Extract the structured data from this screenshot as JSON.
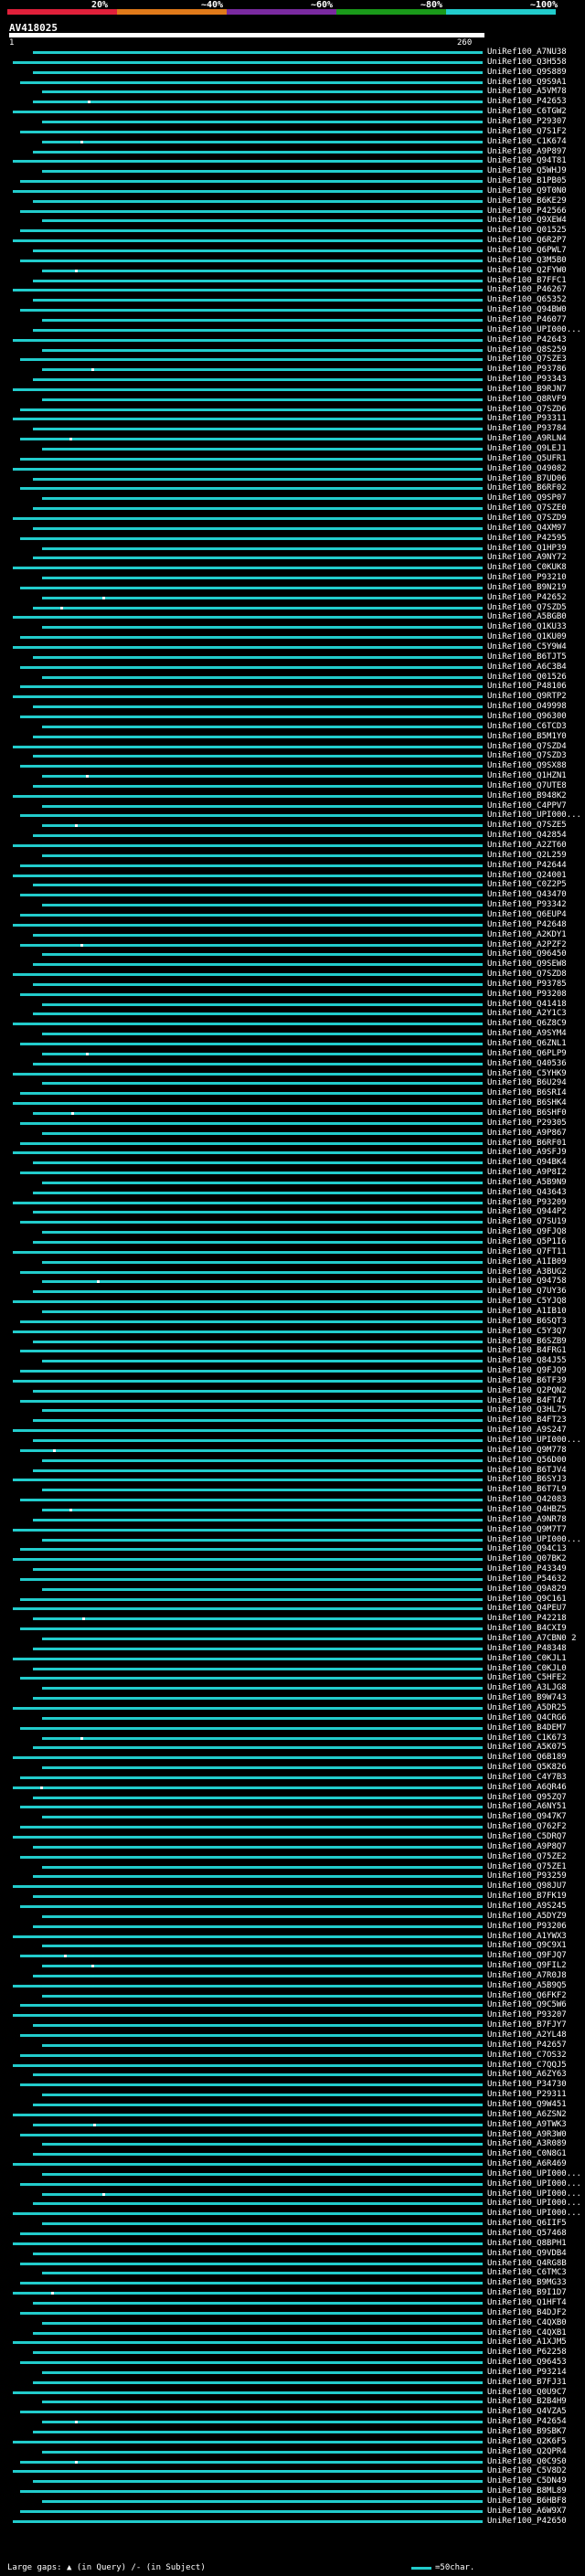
{
  "scale": {
    "labels": [
      "20%",
      "~40%",
      "~60%",
      "~80%",
      "~100%"
    ],
    "colors": [
      "#e0203a",
      "#e07a1a",
      "#7a2aa0",
      "#1a9a1a",
      "#22cccc"
    ]
  },
  "query": {
    "name": "AV418025",
    "start": "1",
    "end": "260"
  },
  "hit_color": "#22cccc",
  "hits": [
    "UniRef100_A7NU38",
    "UniRef100_Q3H558",
    "UniRef100_Q9S889",
    "UniRef100_Q9S9A1",
    "UniRef100_A5VM78",
    "UniRef100_P42653",
    "UniRef100_C6TGW2",
    "UniRef100_P29307",
    "UniRef100_Q7S1F2",
    "UniRef100_C1K674",
    "UniRef100_A9P897",
    "UniRef100_Q94T81",
    "UniRef100_Q5WHJ9",
    "UniRef100_B1PB05",
    "UniRef100_Q9T0N0",
    "UniRef100_B6KE29",
    "UniRef100_P42566",
    "UniRef100_Q9XEW4",
    "UniRef100_Q01525",
    "UniRef100_Q6R2P7",
    "UniRef100_Q6PWL7",
    "UniRef100_Q3M5B0",
    "UniRef100_Q2FYW0",
    "UniRef100_B7FFC1",
    "UniRef100_P46267",
    "UniRef100_Q65352",
    "UniRef100_Q94BW0",
    "UniRef100_P46077",
    "UniRef100_UPI000...",
    "UniRef100_P42643",
    "UniRef100_Q8S259",
    "UniRef100_Q7SZE3",
    "UniRef100_P93786",
    "UniRef100_P93343",
    "UniRef100_B9RJN7",
    "UniRef100_Q8RVF9",
    "UniRef100_Q7SZD6",
    "UniRef100_P93311",
    "UniRef100_P93784",
    "UniRef100_A9RLN4",
    "UniRef100_Q9LEJ1",
    "UniRef100_Q5UFR1",
    "UniRef100_O49082",
    "UniRef100_B7UD06",
    "UniRef100_B6RF02",
    "UniRef100_Q9SP07",
    "UniRef100_Q7SZE0",
    "UniRef100_Q7SZD9",
    "UniRef100_Q4XM97",
    "UniRef100_P42595",
    "UniRef100_Q1HP39",
    "UniRef100_A9NY72",
    "UniRef100_C0KUK8",
    "UniRef100_P93210",
    "UniRef100_B9N219",
    "UniRef100_P42652",
    "UniRef100_Q7SZD5",
    "UniRef100_A5BGB0",
    "UniRef100_Q1KU33",
    "UniRef100_Q1KU09",
    "UniRef100_C5Y9W4",
    "UniRef100_B6TJT5",
    "UniRef100_A6C3B4",
    "UniRef100_Q01526",
    "UniRef100_P48106",
    "UniRef100_Q9RTP2",
    "UniRef100_O49998",
    "UniRef100_Q96300",
    "UniRef100_C6TCD3",
    "UniRef100_B5M1Y0",
    "UniRef100_Q7SZD4",
    "UniRef100_Q7SZD3",
    "UniRef100_Q9SX88",
    "UniRef100_Q1HZN1",
    "UniRef100_Q7UTE8",
    "UniRef100_B948K2",
    "UniRef100_C4PPV7",
    "UniRef100_UPI000...",
    "UniRef100_Q7SZE5",
    "UniRef100_Q42854",
    "UniRef100_A2ZT60",
    "UniRef100_Q2L259",
    "UniRef100_P42644",
    "UniRef100_Q24001",
    "UniRef100_C0Z2P5",
    "UniRef100_Q43470",
    "UniRef100_P93342",
    "UniRef100_Q6EUP4",
    "UniRef100_P42648",
    "UniRef100_A2KDY1",
    "UniRef100_A2PZF2",
    "UniRef100_Q96450",
    "UniRef100_Q9SEW8",
    "UniRef100_Q7SZD8",
    "UniRef100_P93785",
    "UniRef100_P93208",
    "UniRef100_Q41418",
    "UniRef100_A2Y1C3",
    "UniRef100_Q6Z8C9",
    "UniRef100_A9SYM4",
    "UniRef100_Q6ZNL1",
    "UniRef100_Q6PLP9",
    "UniRef100_Q40536",
    "UniRef100_C5YHK9",
    "UniRef100_B6U294",
    "UniRef100_B6SRI4",
    "UniRef100_B6SHK4",
    "UniRef100_B6SHF0",
    "UniRef100_P29305",
    "UniRef100_A9P867",
    "UniRef100_B6RF01",
    "UniRef100_A9SFJ9",
    "UniRef100_Q94BK4",
    "UniRef100_A9P8I2",
    "UniRef100_A5B9N9",
    "UniRef100_Q43643",
    "UniRef100_P93209",
    "UniRef100_Q944P2",
    "UniRef100_Q7SU19",
    "UniRef100_Q9FJQ8",
    "UniRef100_Q5P1I6",
    "UniRef100_Q7FT11",
    "UniRef100_A1IB09",
    "UniRef100_A3BUG2",
    "UniRef100_Q94758",
    "UniRef100_Q7UY36",
    "UniRef100_C5YJQ8",
    "UniRef100_A1IB10",
    "UniRef100_B6SQT3",
    "UniRef100_C5Y3Q7",
    "UniRef100_B6SZB9",
    "UniRef100_B4FRG1",
    "UniRef100_Q84J55",
    "UniRef100_Q9FJQ9",
    "UniRef100_B6TF39",
    "UniRef100_Q2PQN2",
    "UniRef100_B4FT47",
    "UniRef100_Q3HL75",
    "UniRef100_B4FT23",
    "UniRef100_A9S247",
    "UniRef100_UPI000...",
    "UniRef100_Q9M778",
    "UniRef100_Q56D00",
    "UniRef100_B6TJV4",
    "UniRef100_B6SYJ3",
    "UniRef100_B6T7L9",
    "UniRef100_Q42083",
    "UniRef100_Q4HBZ5",
    "UniRef100_A9NR78",
    "UniRef100_Q9M7T7",
    "UniRef100_UPI000...",
    "UniRef100_Q94C13",
    "UniRef100_Q07BK2",
    "UniRef100_P43349",
    "UniRef100_P54632",
    "UniRef100_Q9A829",
    "UniRef100_Q9C161",
    "UniRef100_Q4PEU7",
    "UniRef100_P42218",
    "UniRef100_B4CXI9",
    "UniRef100_A7CBN0 2",
    "UniRef100_P48348",
    "UniRef100_C0KJL1",
    "UniRef100_C0KJL0",
    "UniRef100_C5HFE2",
    "UniRef100_A3LJG8",
    "UniRef100_B9W743",
    "UniRef100_A5DR25",
    "UniRef100_Q4CRG6",
    "UniRef100_B4DEM7",
    "UniRef100_C1K673",
    "UniRef100_A5K075",
    "UniRef100_Q6B189",
    "UniRef100_Q5K826",
    "UniRef100_C4Y7B3",
    "UniRef100_A6QR46",
    "UniRef100_Q95ZQ7",
    "UniRef100_A6NY51",
    "UniRef100_Q947K7",
    "UniRef100_Q762F2",
    "UniRef100_C5DRQ7",
    "UniRef100_A9P8Q7",
    "UniRef100_Q75ZE2",
    "UniRef100_Q75ZE1",
    "UniRef100_P93259",
    "UniRef100_Q98JU7",
    "UniRef100_B7FK19",
    "UniRef100_A9S245",
    "UniRef100_A5DYZ9",
    "UniRef100_P93206",
    "UniRef100_A1YWX3",
    "UniRef100_Q9C9X1",
    "UniRef100_Q9FJQ7",
    "UniRef100_Q9FIL2",
    "UniRef100_A7R0J8",
    "UniRef100_A5B9Q5",
    "UniRef100_Q6FKF2",
    "UniRef100_Q9C5W6",
    "UniRef100_P93207",
    "UniRef100_B7FJY7",
    "UniRef100_A2YL48",
    "UniRef100_P42657",
    "UniRef100_C7OS32",
    "UniRef100_C7QQJ5",
    "UniRef100_A6ZY63",
    "UniRef100_P34730",
    "UniRef100_P29311",
    "UniRef100_Q9W451",
    "UniRef100_A6ZSN2",
    "UniRef100_A9TWK3",
    "UniRef100_A9R3W0",
    "UniRef100_A3R089",
    "UniRef100_C0N8G1",
    "UniRef100_A6R469",
    "UniRef100_UPI000...",
    "UniRef100_UPI000...",
    "UniRef100_UPI000...",
    "UniRef100_UPI000...",
    "UniRef100_UPI000...",
    "UniRef100_Q6IIF5",
    "UniRef100_Q57468",
    "UniRef100_Q8BPH1",
    "UniRef100_Q9VDB4",
    "UniRef100_Q4RG8B",
    "UniRef100_C6TMC3",
    "UniRef100_B9MG33",
    "UniRef100_B9I1D7",
    "UniRef100_Q1HFT4",
    "UniRef100_B4DJF2",
    "UniRef100_C4QXB0",
    "UniRef100_C4QXB1",
    "UniRef100_A1XJM5",
    "UniRef100_P62258",
    "UniRef100_Q96453",
    "UniRef100_P93214",
    "UniRef100_B7FJ31",
    "UniRef100_Q0U9C7",
    "UniRef100_B2B4H9",
    "UniRef100_Q4VZA5",
    "UniRef100_P42654",
    "UniRef100_B9SBK7",
    "UniRef100_Q2K6F5",
    "UniRef100_Q2QPR4",
    "UniRef100_Q0C9S0",
    "UniRef100_C5V8D2",
    "UniRef100_C5DN49",
    "UniRef100_B8ML89",
    "UniRef100_B6HBF8",
    "UniRef100_A6W9X7",
    "UniRef100_P42650"
  ],
  "legend": {
    "large_gaps": "Large gaps:",
    "in_query": "(in Query)",
    "in_subject": "/- (in Subject)",
    "bar_note": "=50char."
  }
}
